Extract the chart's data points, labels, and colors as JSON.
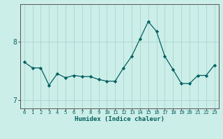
{
  "x": [
    0,
    1,
    2,
    3,
    4,
    5,
    6,
    7,
    8,
    9,
    10,
    11,
    12,
    13,
    14,
    15,
    16,
    17,
    18,
    19,
    20,
    21,
    22,
    23
  ],
  "y": [
    7.65,
    7.55,
    7.55,
    7.25,
    7.45,
    7.38,
    7.42,
    7.4,
    7.4,
    7.35,
    7.32,
    7.32,
    7.55,
    7.75,
    8.05,
    8.35,
    8.18,
    7.75,
    7.52,
    7.28,
    7.28,
    7.42,
    7.42,
    7.6
  ],
  "line_color": "#006060",
  "marker_color": "#006060",
  "bg_color": "#cceee8",
  "grid_color": "#aad4ce",
  "axis_color": "#555555",
  "title": "",
  "xlabel": "Humidex (Indice chaleur)",
  "ylabel": "",
  "ylim": [
    6.85,
    8.65
  ],
  "yticks": [
    7,
    8
  ],
  "xlim": [
    -0.5,
    23.5
  ],
  "xlabel_color": "#006060",
  "tick_color": "#555555",
  "tick_label_color": "#006060",
  "xlabel_fontsize": 6.5,
  "ytick_fontsize": 7.0,
  "xtick_fontsize": 5.2
}
